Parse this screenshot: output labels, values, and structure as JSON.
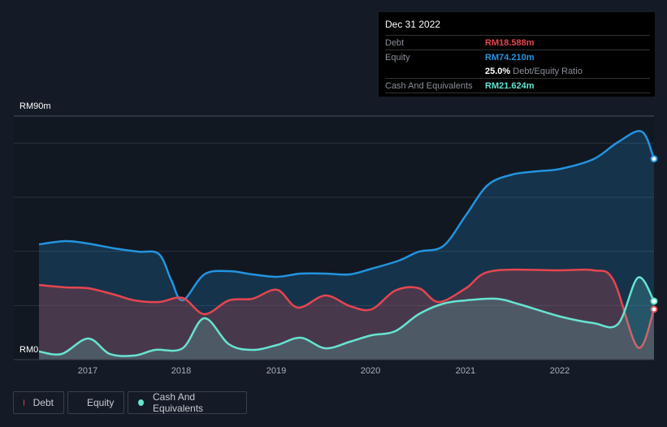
{
  "tooltip": {
    "date": "Dec 31 2022",
    "debt_label": "Debt",
    "debt_value": "RM18.588m",
    "equity_label": "Equity",
    "equity_value": "RM74.210m",
    "ratio_value": "25.0%",
    "ratio_label": "Debt/Equity Ratio",
    "cash_label": "Cash And Equivalents",
    "cash_value": "RM21.624m"
  },
  "legend": [
    {
      "label": "Debt",
      "color": "#e5464f"
    },
    {
      "label": "Equity",
      "color": "#2394df"
    },
    {
      "label": "Cash And Equivalents",
      "color": "#67e3d0"
    }
  ],
  "chart_data": {
    "type": "area",
    "yticks": [
      "RM0",
      "RM90m"
    ],
    "ylim": [
      0,
      90
    ],
    "xlim": [
      2016.48,
      2022.99
    ],
    "xticks": [
      "2017",
      "2018",
      "2019",
      "2020",
      "2021",
      "2022"
    ],
    "series": [
      {
        "name": "Equity",
        "color": "#2394df",
        "x": [
          2016.48,
          2016.76,
          2017,
          2017.28,
          2017.53,
          2017.75,
          2017.88,
          2018,
          2018.23,
          2018.49,
          2018.74,
          2019,
          2019.25,
          2019.51,
          2019.77,
          2020,
          2020.29,
          2020.5,
          2020.76,
          2021,
          2021.23,
          2021.49,
          2021.75,
          2022,
          2022.35,
          2022.61,
          2022.86,
          2022.99
        ],
        "values": [
          42.6,
          43.8,
          42.9,
          41.1,
          39.9,
          39,
          29.4,
          21.9,
          31.5,
          32.7,
          31.5,
          30.6,
          31.8,
          31.8,
          31.5,
          33.6,
          36.6,
          39.9,
          42,
          53.4,
          64.5,
          68.4,
          69.6,
          70.5,
          74.1,
          80.4,
          84.3,
          74.2
        ]
      },
      {
        "name": "Debt",
        "color": "#e5464f",
        "x": [
          2016.48,
          2016.76,
          2017,
          2017.28,
          2017.49,
          2017.75,
          2018,
          2018.23,
          2018.49,
          2018.74,
          2019,
          2019.22,
          2019.51,
          2019.77,
          2020,
          2020.25,
          2020.5,
          2020.71,
          2021,
          2021.27,
          2022,
          2022.35,
          2022.56,
          2022.82,
          2022.99
        ],
        "values": [
          27.6,
          26.7,
          26.4,
          24,
          21.9,
          21.3,
          22.8,
          16.8,
          21.9,
          22.5,
          25.8,
          19.2,
          23.7,
          19.8,
          18.6,
          25.5,
          26.4,
          21.3,
          26.4,
          32.7,
          33,
          33,
          29.4,
          4.5,
          18.6
        ]
      },
      {
        "name": "Cash And Equivalents",
        "color": "#67e3d0",
        "x": [
          2016.48,
          2016.72,
          2017,
          2017.23,
          2017.49,
          2017.71,
          2018,
          2018.23,
          2018.49,
          2018.74,
          2019,
          2019.25,
          2019.51,
          2019.77,
          2020,
          2020.25,
          2020.5,
          2020.76,
          2021,
          2021.32,
          2021.57,
          2022,
          2022.35,
          2022.61,
          2022.82,
          2022.99
        ],
        "values": [
          3,
          2.1,
          7.8,
          2.1,
          1.5,
          3.6,
          4.2,
          15.3,
          5.7,
          3.6,
          5.4,
          8.1,
          4.2,
          6.6,
          9,
          10.5,
          16.8,
          20.7,
          21.9,
          22.5,
          20.4,
          15.9,
          13.5,
          13.2,
          30.3,
          21.6
        ]
      }
    ]
  }
}
